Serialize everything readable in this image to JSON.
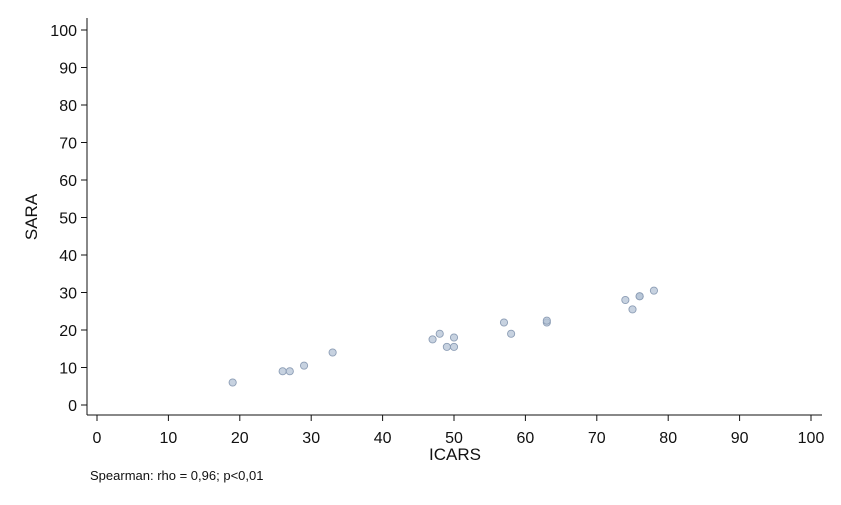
{
  "chart_data": {
    "type": "scatter",
    "xlabel": "ICARS",
    "ylabel": "SARA",
    "xlim": [
      0,
      100
    ],
    "ylim": [
      0,
      100
    ],
    "xticks": [
      0,
      10,
      20,
      30,
      40,
      50,
      60,
      70,
      80,
      90,
      100
    ],
    "yticks": [
      0,
      10,
      20,
      30,
      40,
      50,
      60,
      70,
      80,
      90,
      100
    ],
    "grid": false,
    "marker_color": "#b4c3d6",
    "marker_edge_color": "#8c9db5",
    "points": [
      {
        "x": 19,
        "y": 6
      },
      {
        "x": 26,
        "y": 9
      },
      {
        "x": 27,
        "y": 9
      },
      {
        "x": 29,
        "y": 10.5
      },
      {
        "x": 33,
        "y": 14
      },
      {
        "x": 47,
        "y": 17.5
      },
      {
        "x": 48,
        "y": 19
      },
      {
        "x": 49,
        "y": 15.5
      },
      {
        "x": 50,
        "y": 15.5
      },
      {
        "x": 50,
        "y": 18
      },
      {
        "x": 57,
        "y": 22
      },
      {
        "x": 58,
        "y": 19
      },
      {
        "x": 63,
        "y": 22
      },
      {
        "x": 63,
        "y": 22.5
      },
      {
        "x": 74,
        "y": 28
      },
      {
        "x": 75,
        "y": 25.5
      },
      {
        "x": 76,
        "y": 29
      },
      {
        "x": 76,
        "y": 29
      },
      {
        "x": 78,
        "y": 30.5
      }
    ]
  },
  "annotation": "Spearman: rho = 0,96; p<0,01"
}
